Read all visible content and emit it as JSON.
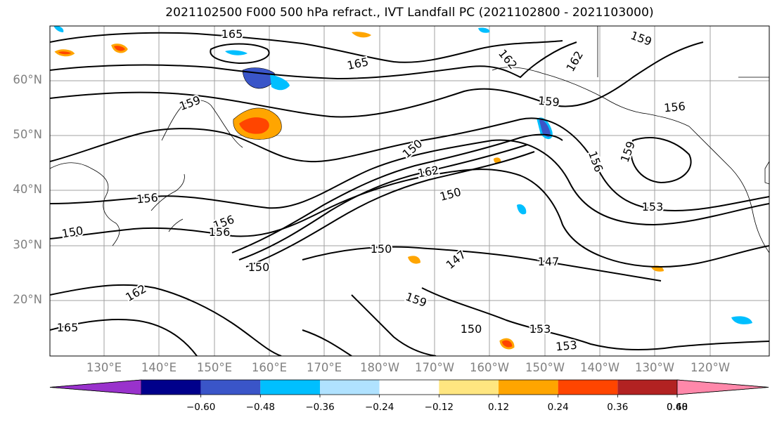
{
  "title": "2021102500 F000 500 hPa refract., IVT Landfall PC (2021102800 - 2021103000)",
  "lat_labels": [
    "60°N",
    "50°N",
    "40°N",
    "30°N",
    "20°N"
  ],
  "lon_labels": [
    "130°E",
    "140°E",
    "150°E",
    "160°E",
    "170°E",
    "180°W",
    "170°W",
    "160°W",
    "150°W",
    "140°W",
    "130°W",
    "120°W"
  ],
  "contour_labels": [
    "165",
    "165",
    "162",
    "162",
    "159",
    "159",
    "159",
    "159",
    "156",
    "156",
    "156",
    "156",
    "153",
    "153",
    "150",
    "150",
    "150",
    "150",
    "150",
    "147",
    "147",
    "162",
    "165",
    "162",
    "159",
    "150",
    "153",
    "156"
  ],
  "colorbar": {
    "ticks": [
      "−0.60",
      "−0.48",
      "−0.36",
      "−0.24",
      "−0.12",
      "0.12",
      "0.24",
      "0.36",
      "0.48",
      "0.60"
    ],
    "colors": [
      "#9932cc",
      "#00008b",
      "#3a55c8",
      "#00bfff",
      "#b0e2ff",
      "#ffffff",
      "#ffe680",
      "#ffa500",
      "#ff4500",
      "#b22222",
      "#ff88aa"
    ]
  },
  "style": {
    "grid_color": "#a0a0a0",
    "contour_color": "#000000",
    "label_color": "#808080"
  }
}
